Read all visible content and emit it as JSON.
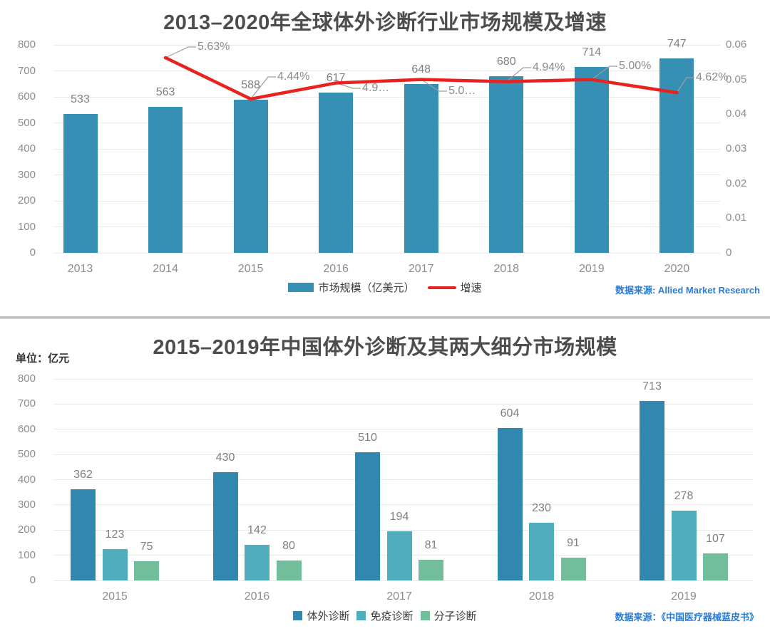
{
  "chart_data": [
    {
      "type": "bar",
      "combo": "bar+line",
      "title": "2013–2020年全球体外诊断行业市场规模及增速",
      "categories": [
        "2013",
        "2014",
        "2015",
        "2016",
        "2017",
        "2018",
        "2019",
        "2020"
      ],
      "series": [
        {
          "name": "市场规模（亿美元）",
          "type": "bar",
          "axis": "left",
          "color": "#3590b4",
          "values": [
            533,
            563,
            588,
            617,
            648,
            680,
            714,
            747
          ]
        },
        {
          "name": "增速",
          "type": "line",
          "axis": "right",
          "color": "#e8231f",
          "values": [
            null,
            0.0563,
            0.0444,
            0.049,
            0.05,
            0.0494,
            0.05,
            0.0462
          ],
          "point_labels": [
            "",
            "5.63%",
            "4.44%",
            "4.9…",
            "5.0…",
            "4.94%",
            "5.00%",
            "4.62%"
          ]
        }
      ],
      "left_axis": {
        "min": 0,
        "max": 800,
        "ticks": [
          "0",
          "100",
          "200",
          "300",
          "400",
          "500",
          "600",
          "700",
          "800"
        ]
      },
      "right_axis": {
        "min": 0,
        "max": 0.06,
        "ticks": [
          "0",
          "0.01",
          "0.02",
          "0.03",
          "0.04",
          "0.05",
          "0.06"
        ]
      },
      "grid": true,
      "legend_position": "bottom-center",
      "source": "数据来源: Allied Market Research"
    },
    {
      "type": "bar",
      "title": "2015–2019年中国体外诊断及其两大细分市场规模",
      "unit_label": "单位：亿元",
      "categories": [
        "2015",
        "2016",
        "2017",
        "2018",
        "2019"
      ],
      "series": [
        {
          "name": "体外诊断",
          "color": "#3187ae",
          "values": [
            362,
            430,
            510,
            604,
            713
          ]
        },
        {
          "name": "免疫诊断",
          "color": "#4fadbc",
          "values": [
            123,
            142,
            194,
            230,
            278
          ]
        },
        {
          "name": "分子诊断",
          "color": "#72bd9b",
          "values": [
            75,
            80,
            81,
            91,
            107
          ]
        }
      ],
      "y_axis": {
        "min": 0,
        "max": 800,
        "ticks": [
          "0",
          "100",
          "200",
          "300",
          "400",
          "500",
          "600",
          "700",
          "800"
        ]
      },
      "grid": true,
      "legend_position": "bottom-center",
      "source": "数据来源：《中国医疗器械蓝皮书》"
    }
  ]
}
